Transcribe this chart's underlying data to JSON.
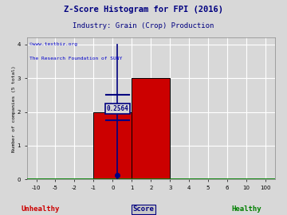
{
  "title": "Z-Score Histogram for FPI (2016)",
  "subtitle": "Industry: Grain (Crop) Production",
  "xlabel_score": "Score",
  "xlabel_unhealthy": "Unhealthy",
  "xlabel_healthy": "Healthy",
  "ylabel": "Number of companies (5 total)",
  "watermark1": "©www.textbiz.org",
  "watermark2": "The Research Foundation of SUNY",
  "bar_data": [
    {
      "bin_start_idx": 3,
      "bin_end_idx": 5,
      "height": 2,
      "color": "#cc0000"
    },
    {
      "bin_start_idx": 5,
      "bin_end_idx": 7,
      "height": 3,
      "color": "#cc0000"
    }
  ],
  "zscore_value": 0.2564,
  "zscore_label": "0.2564",
  "xtick_values": [
    -10,
    -5,
    -2,
    -1,
    0,
    1,
    2,
    3,
    4,
    5,
    6,
    10,
    100
  ],
  "xtick_labels": [
    "-10",
    "-5",
    "-2",
    "-1",
    "0",
    "1",
    "2",
    "3",
    "4",
    "5",
    "6",
    "10",
    "100"
  ],
  "ytick_positions": [
    0,
    1,
    2,
    3,
    4
  ],
  "ytick_labels": [
    "0",
    "1",
    "2",
    "3",
    "4"
  ],
  "ylim": [
    0,
    4.2
  ],
  "bg_color": "#d8d8d8",
  "plot_bg_color": "#d8d8d8",
  "grid_color": "#ffffff",
  "bar_edge_color": "#000000",
  "title_color": "#000080",
  "subtitle_color": "#000080",
  "watermark1_color": "#0000cc",
  "watermark2_color": "#0000cc",
  "unhealthy_color": "#cc0000",
  "healthy_color": "#008000",
  "score_label_color": "#000080",
  "crosshair_color": "#000080",
  "label_box_facecolor": "#d8d8d8",
  "label_text_color": "#000080",
  "bottom_line_color": "#008000",
  "font_family": "monospace"
}
